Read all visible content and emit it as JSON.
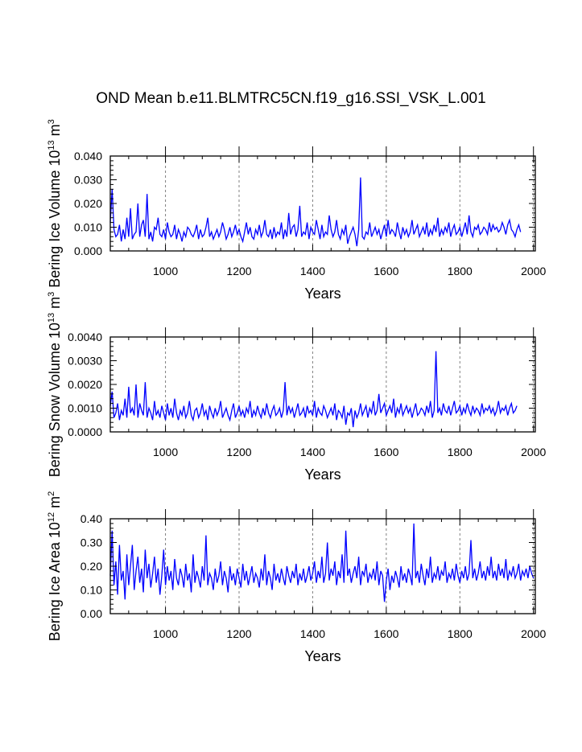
{
  "title": "OND Mean b.e11.BLMTRC5CN.f19_g16.SSI_VSK_L.001",
  "colors": {
    "series": "#0000ff",
    "axis": "#000000",
    "refline": "#808080"
  },
  "chart_data": [
    {
      "type": "line",
      "xlabel": "Years",
      "ylabel": "Bering Ice Volume 10",
      "ylabel_exp": "13",
      "ylabel_unit": " m",
      "ylabel_unit_exp": "3",
      "xlim": [
        850,
        2005
      ],
      "ylim": [
        0,
        0.04
      ],
      "xticks": [
        1000,
        1200,
        1400,
        1600,
        1800,
        2000
      ],
      "xtick_labels": [
        "1000",
        "1200",
        "1400",
        "1600",
        "1800",
        "2000"
      ],
      "yticks": [
        0,
        0.01,
        0.02,
        0.03,
        0.04
      ],
      "ytick_labels": [
        "0.000",
        "0.010",
        "0.020",
        "0.030",
        "0.040"
      ],
      "grid": "dashed vertical lines at 1000, 1200, 1400, 1600, 1800, 2000",
      "series": [
        {
          "x_start": 850,
          "x_step": 5,
          "values": [
            0.012,
            0.026,
            0.009,
            0.006,
            0.007,
            0.011,
            0.004,
            0.009,
            0.005,
            0.014,
            0.006,
            0.018,
            0.005,
            0.007,
            0.008,
            0.02,
            0.006,
            0.011,
            0.013,
            0.006,
            0.024,
            0.005,
            0.008,
            0.004,
            0.01,
            0.009,
            0.014,
            0.007,
            0.006,
            0.009,
            0.005,
            0.012,
            0.008,
            0.006,
            0.007,
            0.011,
            0.005,
            0.009,
            0.007,
            0.004,
            0.008,
            0.006,
            0.01,
            0.009,
            0.007,
            0.006,
            0.008,
            0.011,
            0.005,
            0.009,
            0.006,
            0.007,
            0.01,
            0.014,
            0.006,
            0.008,
            0.005,
            0.007,
            0.009,
            0.006,
            0.008,
            0.012,
            0.009,
            0.005,
            0.007,
            0.01,
            0.006,
            0.008,
            0.011,
            0.007,
            0.009,
            0.006,
            0.004,
            0.008,
            0.012,
            0.007,
            0.01,
            0.006,
            0.005,
            0.009,
            0.007,
            0.011,
            0.006,
            0.008,
            0.013,
            0.007,
            0.006,
            0.009,
            0.005,
            0.01,
            0.006,
            0.008,
            0.007,
            0.012,
            0.005,
            0.009,
            0.006,
            0.016,
            0.007,
            0.01,
            0.011,
            0.006,
            0.009,
            0.019,
            0.006,
            0.008,
            0.007,
            0.012,
            0.005,
            0.01,
            0.008,
            0.007,
            0.013,
            0.009,
            0.005,
            0.011,
            0.006,
            0.008,
            0.007,
            0.015,
            0.009,
            0.006,
            0.008,
            0.013,
            0.007,
            0.005,
            0.009,
            0.007,
            0.011,
            0.003,
            0.006,
            0.008,
            0.01,
            0.007,
            0.002,
            0.009,
            0.031,
            0.006,
            0.005,
            0.008,
            0.007,
            0.012,
            0.006,
            0.008,
            0.01,
            0.007,
            0.009,
            0.005,
            0.008,
            0.011,
            0.006,
            0.013,
            0.007,
            0.009,
            0.008,
            0.006,
            0.012,
            0.008,
            0.005,
            0.01,
            0.007,
            0.009,
            0.006,
            0.008,
            0.013,
            0.007,
            0.009,
            0.011,
            0.006,
            0.008,
            0.01,
            0.007,
            0.012,
            0.006,
            0.009,
            0.007,
            0.011,
            0.008,
            0.014,
            0.006,
            0.009,
            0.007,
            0.01,
            0.008,
            0.012,
            0.006,
            0.009,
            0.011,
            0.007,
            0.008,
            0.01,
            0.006,
            0.009,
            0.012,
            0.007,
            0.015,
            0.008,
            0.006,
            0.01,
            0.009,
            0.011,
            0.007,
            0.008,
            0.01,
            0.009,
            0.007,
            0.012,
            0.008,
            0.011,
            0.009,
            0.01,
            0.008,
            0.009,
            0.012,
            0.01,
            0.007,
            0.011,
            0.013,
            0.009,
            0.008,
            0.006,
            0.009,
            0.011,
            0.008
          ]
        }
      ]
    },
    {
      "type": "line",
      "xlabel": "Years",
      "ylabel": "Bering Snow Volume 10",
      "ylabel_exp": "13",
      "ylabel_unit": " m",
      "ylabel_unit_exp": "3",
      "xlim": [
        850,
        2005
      ],
      "ylim": [
        0,
        0.004
      ],
      "xticks": [
        1000,
        1200,
        1400,
        1600,
        1800,
        2000
      ],
      "xtick_labels": [
        "1000",
        "1200",
        "1400",
        "1600",
        "1800",
        "2000"
      ],
      "yticks": [
        0,
        0.001,
        0.002,
        0.003,
        0.004
      ],
      "ytick_labels": [
        "0.0000",
        "0.0010",
        "0.0020",
        "0.0030",
        "0.0040"
      ],
      "grid": "dashed vertical lines at 1000, 1200, 1400, 1600, 1800, 2000",
      "series": [
        {
          "x_start": 850,
          "x_step": 5,
          "values": [
            0.0011,
            0.0017,
            0.0006,
            0.0008,
            0.0012,
            0.0005,
            0.0009,
            0.0007,
            0.0014,
            0.0006,
            0.0019,
            0.0008,
            0.001,
            0.0007,
            0.002,
            0.0006,
            0.0012,
            0.0009,
            0.0007,
            0.0021,
            0.0006,
            0.001,
            0.0008,
            0.0005,
            0.0013,
            0.0007,
            0.0009,
            0.0006,
            0.0011,
            0.0008,
            0.0005,
            0.0012,
            0.0007,
            0.001,
            0.0006,
            0.0014,
            0.0008,
            0.0005,
            0.0009,
            0.0007,
            0.0011,
            0.0006,
            0.0008,
            0.0013,
            0.0007,
            0.0005,
            0.0009,
            0.001,
            0.0006,
            0.0008,
            0.0012,
            0.0007,
            0.0009,
            0.0005,
            0.0011,
            0.0008,
            0.0006,
            0.001,
            0.0007,
            0.0009,
            0.0013,
            0.0006,
            0.0008,
            0.001,
            0.0007,
            0.0005,
            0.0009,
            0.0012,
            0.0006,
            0.0008,
            0.0011,
            0.0007,
            0.0009,
            0.0006,
            0.001,
            0.0008,
            0.0013,
            0.0006,
            0.0009,
            0.0007,
            0.0011,
            0.0008,
            0.0006,
            0.001,
            0.0007,
            0.0012,
            0.0008,
            0.0006,
            0.0009,
            0.0011,
            0.0007,
            0.0008,
            0.001,
            0.0006,
            0.0009,
            0.0021,
            0.0007,
            0.0011,
            0.0008,
            0.001,
            0.0006,
            0.0009,
            0.0012,
            0.0007,
            0.0008,
            0.001,
            0.0006,
            0.0011,
            0.0008,
            0.0009,
            0.0007,
            0.0013,
            0.0006,
            0.001,
            0.0008,
            0.0007,
            0.0011,
            0.0009,
            0.0006,
            0.0008,
            0.001,
            0.0007,
            0.0012,
            0.0005,
            0.0009,
            0.0008,
            0.0006,
            0.0011,
            0.0003,
            0.0008,
            0.0007,
            0.001,
            0.0002,
            0.0009,
            0.0006,
            0.0008,
            0.0012,
            0.0007,
            0.0009,
            0.0011,
            0.0006,
            0.001,
            0.0008,
            0.0013,
            0.0007,
            0.0009,
            0.0016,
            0.0008,
            0.001,
            0.0012,
            0.0007,
            0.0009,
            0.0011,
            0.0008,
            0.0014,
            0.0006,
            0.001,
            0.0008,
            0.0012,
            0.0007,
            0.0009,
            0.0011,
            0.0008,
            0.001,
            0.0006,
            0.0009,
            0.0012,
            0.0007,
            0.0008,
            0.001,
            0.0009,
            0.0007,
            0.0011,
            0.0008,
            0.0013,
            0.0006,
            0.0009,
            0.0034,
            0.0008,
            0.001,
            0.0007,
            0.0012,
            0.0009,
            0.0008,
            0.0011,
            0.0007,
            0.001,
            0.0013,
            0.0008,
            0.0009,
            0.0011,
            0.0007,
            0.001,
            0.0008,
            0.0012,
            0.0009,
            0.0007,
            0.0011,
            0.0008,
            0.001,
            0.0009,
            0.0007,
            0.0012,
            0.0008,
            0.001,
            0.0009,
            0.0011,
            0.0008,
            0.001,
            0.0007,
            0.0009,
            0.0013,
            0.0008,
            0.001,
            0.0009,
            0.0011,
            0.0007,
            0.001,
            0.0012,
            0.0008,
            0.0009,
            0.0011
          ]
        }
      ]
    },
    {
      "type": "line",
      "xlabel": "Years",
      "ylabel": "Bering Ice Area 10",
      "ylabel_exp": "12",
      "ylabel_unit": " m",
      "ylabel_unit_exp": "2",
      "xlim": [
        850,
        2005
      ],
      "ylim": [
        0,
        0.4
      ],
      "xticks": [
        1000,
        1200,
        1400,
        1600,
        1800,
        2000
      ],
      "xtick_labels": [
        "1000",
        "1200",
        "1400",
        "1600",
        "1800",
        "2000"
      ],
      "yticks": [
        0,
        0.1,
        0.2,
        0.3,
        0.4
      ],
      "ytick_labels": [
        "0.00",
        "0.10",
        "0.20",
        "0.30",
        "0.40"
      ],
      "grid": "dashed vertical lines at 1000, 1200, 1400, 1600, 1800, 2000",
      "series": [
        {
          "x_start": 850,
          "x_step": 5,
          "values": [
            0.16,
            0.35,
            0.12,
            0.22,
            0.08,
            0.29,
            0.14,
            0.18,
            0.06,
            0.25,
            0.12,
            0.2,
            0.29,
            0.1,
            0.18,
            0.24,
            0.13,
            0.19,
            0.09,
            0.27,
            0.15,
            0.21,
            0.11,
            0.17,
            0.24,
            0.13,
            0.19,
            0.08,
            0.16,
            0.27,
            0.12,
            0.2,
            0.14,
            0.18,
            0.1,
            0.23,
            0.15,
            0.12,
            0.19,
            0.16,
            0.11,
            0.21,
            0.14,
            0.17,
            0.09,
            0.25,
            0.13,
            0.18,
            0.15,
            0.11,
            0.2,
            0.14,
            0.33,
            0.12,
            0.17,
            0.15,
            0.1,
            0.19,
            0.13,
            0.16,
            0.22,
            0.12,
            0.18,
            0.15,
            0.09,
            0.2,
            0.14,
            0.17,
            0.12,
            0.19,
            0.15,
            0.11,
            0.21,
            0.14,
            0.18,
            0.12,
            0.16,
            0.2,
            0.13,
            0.17,
            0.15,
            0.11,
            0.19,
            0.14,
            0.25,
            0.12,
            0.18,
            0.15,
            0.1,
            0.21,
            0.14,
            0.17,
            0.13,
            0.19,
            0.15,
            0.12,
            0.2,
            0.16,
            0.13,
            0.18,
            0.15,
            0.21,
            0.12,
            0.17,
            0.14,
            0.19,
            0.13,
            0.16,
            0.2,
            0.14,
            0.17,
            0.22,
            0.13,
            0.18,
            0.15,
            0.24,
            0.13,
            0.17,
            0.3,
            0.14,
            0.19,
            0.16,
            0.22,
            0.12,
            0.18,
            0.15,
            0.25,
            0.13,
            0.35,
            0.16,
            0.19,
            0.13,
            0.17,
            0.2,
            0.15,
            0.24,
            0.12,
            0.18,
            0.16,
            0.21,
            0.13,
            0.17,
            0.15,
            0.19,
            0.14,
            0.22,
            0.12,
            0.18,
            0.16,
            0.05,
            0.14,
            0.19,
            0.1,
            0.16,
            0.13,
            0.18,
            0.15,
            0.11,
            0.2,
            0.14,
            0.17,
            0.13,
            0.19,
            0.16,
            0.12,
            0.38,
            0.15,
            0.18,
            0.13,
            0.21,
            0.16,
            0.12,
            0.19,
            0.15,
            0.24,
            0.13,
            0.17,
            0.15,
            0.2,
            0.14,
            0.18,
            0.16,
            0.22,
            0.13,
            0.17,
            0.15,
            0.19,
            0.14,
            0.21,
            0.16,
            0.13,
            0.18,
            0.15,
            0.2,
            0.14,
            0.17,
            0.31,
            0.15,
            0.19,
            0.14,
            0.17,
            0.22,
            0.15,
            0.18,
            0.14,
            0.2,
            0.16,
            0.24,
            0.15,
            0.18,
            0.14,
            0.21,
            0.16,
            0.19,
            0.15,
            0.23,
            0.14,
            0.18,
            0.16,
            0.2,
            0.15,
            0.17,
            0.21,
            0.14,
            0.18,
            0.16,
            0.19,
            0.15,
            0.2,
            0.17,
            0.15
          ]
        }
      ]
    }
  ]
}
